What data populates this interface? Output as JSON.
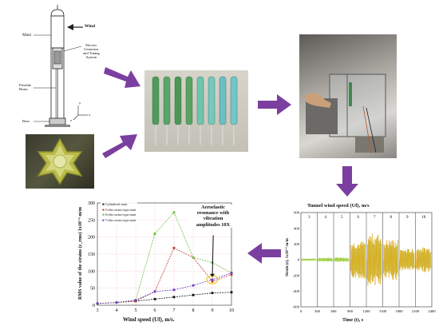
{
  "schematic": {
    "labels": {
      "wind": "Wind",
      "mast": "Mast",
      "generator": "Electric\nGenerator\nand Tuning\nSystem",
      "flexible_beam": "Flexible\nBeam",
      "base": "Base",
      "axis_y": "y",
      "axis_z": "z",
      "axis_x": "x"
    }
  },
  "chart_left": {
    "chart_data": {
      "type": "line",
      "x": [
        3,
        4,
        5,
        6,
        7,
        8,
        9,
        10
      ],
      "xlabel": "Wind speed (Uf), m/s.",
      "ylabel": "RMS value of the strains (ε_rms) 1x10⁻⁶ m/m",
      "xlim": [
        3,
        10
      ],
      "ylim": [
        0,
        300
      ],
      "yticks": [
        0,
        50,
        100,
        150,
        200,
        250,
        300
      ],
      "grid": true,
      "legend_position": "top-left",
      "series": [
        {
          "name": "Cylindrical mast",
          "color": "#111111",
          "values": [
            5,
            8,
            12,
            18,
            24,
            30,
            36,
            38
          ]
        },
        {
          "name": "5-ribs cactus-type mast",
          "color": "#c0392b",
          "values": [
            5,
            8,
            12,
            40,
            168,
            140,
            70,
            90
          ]
        },
        {
          "name": "6-ribs cactus-type mast",
          "color": "#6abf3b",
          "values": [
            5,
            8,
            15,
            210,
            272,
            140,
            125,
            95
          ]
        },
        {
          "name": "7-ribs cactus-type mast",
          "color": "#6a3fc0",
          "values": [
            5,
            8,
            15,
            40,
            45,
            58,
            75,
            95
          ]
        }
      ],
      "annotation": "Aeroelastic\nresonance with\nvibration\namplitudes 10X"
    }
  },
  "chart_right": {
    "title": "Tunnel wind speed (Uf), m/s",
    "xlabel": "Time (t), s",
    "ylabel": "Strain (ε), 1x10⁻⁶ m/m",
    "xticks": [
      "0",
      "300",
      "600",
      "900",
      "1200",
      "1500",
      "1800",
      "2100",
      "2400"
    ],
    "yticks": [
      "600",
      "400",
      "200",
      "0",
      "-200",
      "-400",
      "-600"
    ],
    "speed_labels": [
      "3",
      "4",
      "5",
      "6",
      "7",
      "8",
      "9",
      "10"
    ],
    "colors": {
      "signal_main": "#f39c12",
      "signal_green": "#9acd32"
    }
  }
}
